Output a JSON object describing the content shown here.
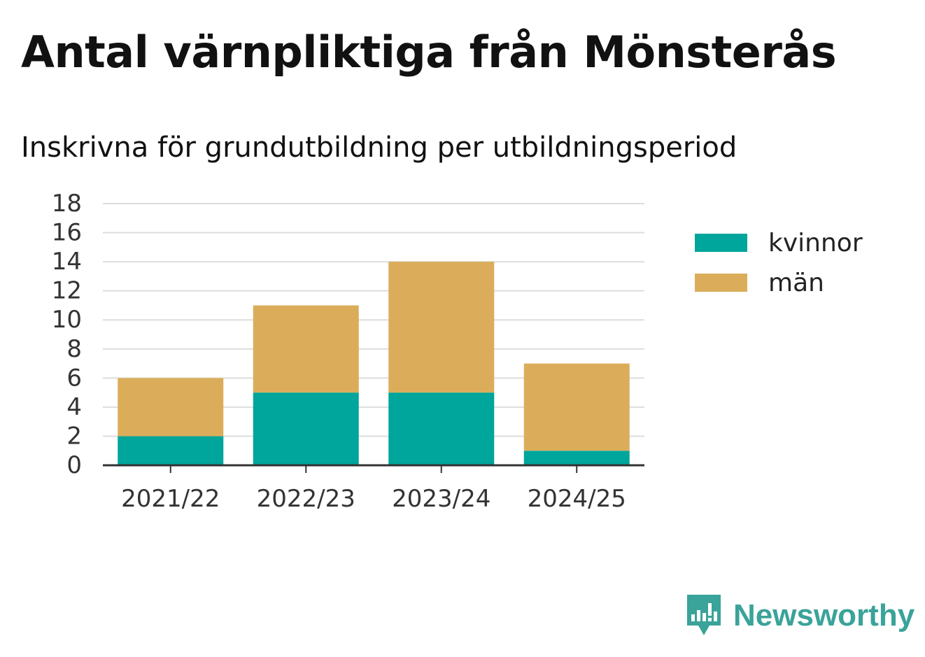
{
  "header": {
    "title": "Antal värnpliktiga från Mönsterås",
    "subtitle": "Inskrivna för grundutbildning per utbildningsperiod"
  },
  "brand": {
    "name": "Newsworthy",
    "icon": "newsworthy-logo-icon",
    "color": "#3aa39a"
  },
  "chart_data": {
    "type": "bar",
    "stacked": true,
    "categories": [
      "2021/22",
      "2022/23",
      "2023/24",
      "2024/25"
    ],
    "series": [
      {
        "name": "kvinnor",
        "color": "#00a59b",
        "values": [
          2,
          5,
          5,
          1
        ]
      },
      {
        "name": "män",
        "color": "#dbad5a",
        "values": [
          4,
          6,
          9,
          6
        ]
      }
    ],
    "title": "Antal värnpliktiga från Mönsterås",
    "subtitle": "Inskrivna för grundutbildning per utbildningsperiod",
    "xlabel": "",
    "ylabel": "",
    "ylim": [
      0,
      18
    ],
    "yticks": [
      0,
      2,
      4,
      6,
      8,
      10,
      12,
      14,
      16,
      18
    ],
    "grid": true,
    "legend_position": "right"
  }
}
